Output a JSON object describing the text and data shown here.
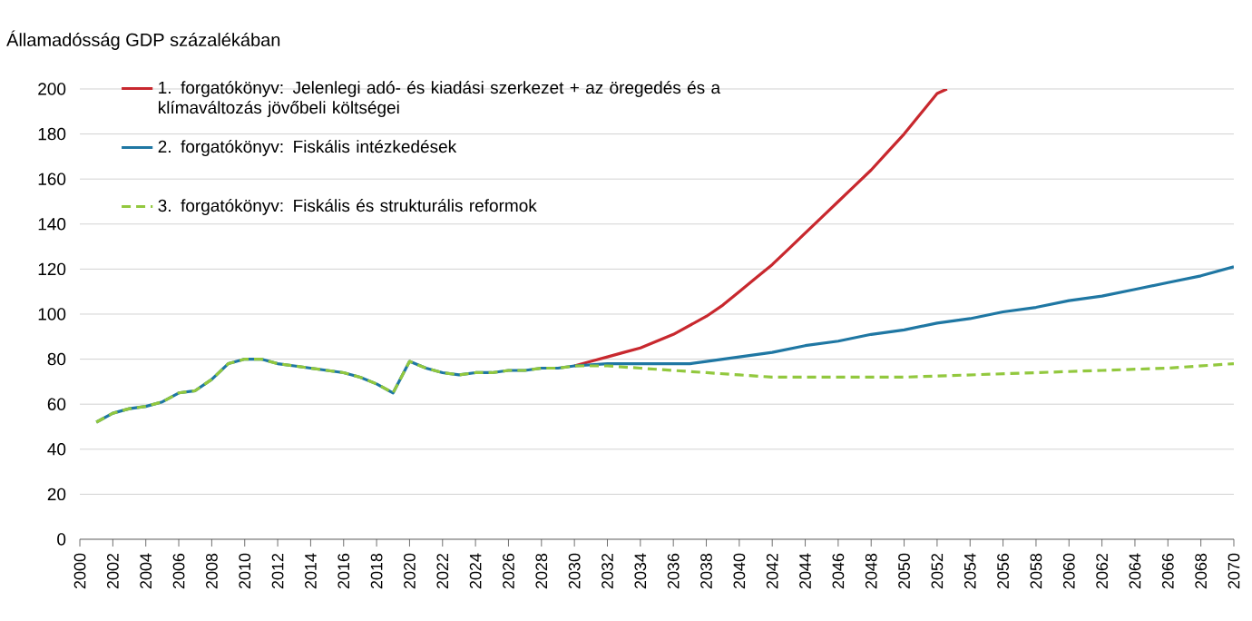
{
  "chart_data": {
    "type": "line",
    "ylabel": "Államadósság GDP százalékában",
    "xlim": [
      2000,
      2070
    ],
    "xticks": [
      2000,
      2002,
      2004,
      2006,
      2008,
      2010,
      2012,
      2014,
      2016,
      2018,
      2020,
      2022,
      2024,
      2026,
      2028,
      2030,
      2032,
      2034,
      2036,
      2038,
      2040,
      2042,
      2044,
      2046,
      2048,
      2050,
      2052,
      2054,
      2056,
      2058,
      2060,
      2062,
      2064,
      2066,
      2068,
      2070
    ],
    "ylim": [
      0,
      200
    ],
    "yticks": [
      0,
      20,
      40,
      60,
      80,
      100,
      120,
      140,
      160,
      180,
      200
    ],
    "grid": "y",
    "legend": "top left",
    "series": [
      {
        "name": "1. forgatókönyv: Jelenlegi adó- és kiadási szerkezet + az öregedés és a klímaváltozás jövőbeli költségei",
        "color": "#c8282e",
        "line_style": "solid",
        "x": [
          2030,
          2031,
          2032,
          2033,
          2034,
          2035,
          2036,
          2037,
          2038,
          2039,
          2040,
          2041,
          2042,
          2043,
          2044,
          2045,
          2046,
          2047,
          2048,
          2049,
          2050,
          2051,
          2052,
          2052.6
        ],
        "values": [
          77,
          79,
          81,
          83,
          85,
          88,
          91,
          95,
          99,
          104,
          110,
          116,
          122,
          129,
          136,
          143,
          150,
          157,
          164,
          172,
          180,
          189,
          198,
          200
        ]
      },
      {
        "name": "2. forgatókönyv: Fiskális intézkedések",
        "color": "#1f77a3",
        "line_style": "solid",
        "x": [
          2001,
          2002,
          2003,
          2004,
          2005,
          2006,
          2007,
          2008,
          2009,
          2010,
          2011,
          2012,
          2013,
          2014,
          2015,
          2016,
          2017,
          2018,
          2019,
          2020,
          2021,
          2022,
          2023,
          2024,
          2025,
          2026,
          2027,
          2028,
          2029,
          2030,
          2032,
          2034,
          2036,
          2037,
          2038,
          2039,
          2040,
          2042,
          2044,
          2046,
          2048,
          2050,
          2052,
          2054,
          2056,
          2058,
          2060,
          2062,
          2064,
          2066,
          2068,
          2070
        ],
        "values": [
          52,
          56,
          58,
          59,
          61,
          65,
          66,
          71,
          78,
          80,
          80,
          78,
          77,
          76,
          75,
          74,
          72,
          69,
          65,
          79,
          76,
          74,
          73,
          74,
          74,
          75,
          75,
          76,
          76,
          77,
          78,
          78,
          78,
          78,
          79,
          80,
          81,
          83,
          86,
          88,
          91,
          93,
          96,
          98,
          101,
          103,
          106,
          108,
          111,
          114,
          117,
          121
        ]
      },
      {
        "name": "3. forgatókönyv: Fiskális és strukturális reformok",
        "color": "#92c83e",
        "line_style": "dashed",
        "x": [
          2001,
          2002,
          2003,
          2004,
          2005,
          2006,
          2007,
          2008,
          2009,
          2010,
          2011,
          2012,
          2013,
          2014,
          2015,
          2016,
          2017,
          2018,
          2019,
          2020,
          2021,
          2022,
          2023,
          2024,
          2025,
          2026,
          2027,
          2028,
          2029,
          2030,
          2032,
          2034,
          2036,
          2038,
          2040,
          2042,
          2046,
          2050,
          2054,
          2058,
          2062,
          2066,
          2070
        ],
        "values": [
          52,
          56,
          58,
          59,
          61,
          65,
          66,
          71,
          78,
          80,
          80,
          78,
          77,
          76,
          75,
          74,
          72,
          69,
          65,
          79,
          76,
          74,
          73,
          74,
          74,
          75,
          75,
          76,
          76,
          77,
          77,
          76,
          75,
          74,
          73,
          72,
          72,
          72,
          73,
          74,
          75,
          76,
          78
        ]
      }
    ]
  }
}
